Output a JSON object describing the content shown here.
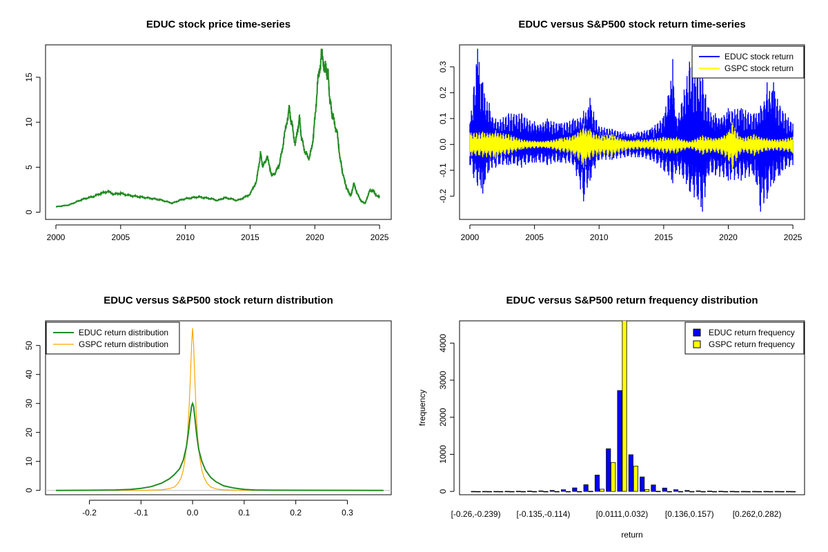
{
  "chart_data": [
    {
      "id": "price",
      "type": "line",
      "title": "EDUC stock price time-series",
      "xlabel": "",
      "ylabel": "",
      "xlim": [
        1999.2,
        2025.9
      ],
      "ylim": [
        -0.8,
        18.6
      ],
      "xticks": [
        2000,
        2005,
        2010,
        2015,
        2020,
        2025
      ],
      "xtick_labels": [
        "2000",
        "2005",
        "2010",
        "2015",
        "2020",
        "2025"
      ],
      "yticks": [
        0,
        5,
        10,
        15
      ],
      "ytick_labels": [
        "0",
        "5",
        "10",
        "15"
      ],
      "grid": false,
      "legend": null,
      "series": [
        {
          "color": "#228B22",
          "x": [
            2000.0,
            2000.5,
            2001.0,
            2001.5,
            2002.0,
            2002.5,
            2003.0,
            2003.5,
            2004.0,
            2004.5,
            2005.0,
            2005.5,
            2006.0,
            2006.5,
            2007.0,
            2007.5,
            2008.0,
            2008.5,
            2009.0,
            2009.5,
            2010.0,
            2010.5,
            2011.0,
            2011.5,
            2012.0,
            2012.5,
            2013.0,
            2013.5,
            2014.0,
            2014.5,
            2015.0,
            2015.5,
            2015.8,
            2016.0,
            2016.3,
            2016.7,
            2017.0,
            2017.3,
            2017.6,
            2018.0,
            2018.2,
            2018.5,
            2018.8,
            2019.0,
            2019.3,
            2019.6,
            2019.9,
            2020.2,
            2020.5,
            2020.8,
            2021.0,
            2021.2,
            2021.4,
            2021.7,
            2022.0,
            2022.2,
            2022.5,
            2022.8,
            2023.0,
            2023.3,
            2023.6,
            2023.9,
            2024.2,
            2024.5,
            2024.8,
            2025.0
          ],
          "y": [
            0.6,
            0.7,
            0.8,
            1.1,
            1.4,
            1.6,
            1.8,
            2.1,
            2.3,
            2.0,
            2.1,
            1.9,
            1.8,
            1.7,
            1.6,
            1.5,
            1.4,
            1.2,
            1.0,
            1.3,
            1.5,
            1.6,
            1.7,
            1.6,
            1.5,
            1.3,
            1.6,
            1.5,
            1.3,
            1.6,
            2.0,
            3.5,
            6.5,
            5.0,
            6.2,
            4.0,
            4.5,
            5.5,
            8.0,
            11.5,
            10.0,
            7.5,
            10.5,
            8.0,
            6.5,
            6.0,
            8.5,
            14.0,
            17.5,
            16.0,
            15.5,
            12.0,
            10.5,
            9.0,
            5.5,
            4.0,
            2.5,
            1.8,
            3.2,
            2.0,
            1.2,
            1.0,
            2.3,
            2.4,
            1.8,
            1.7
          ]
        }
      ]
    },
    {
      "id": "returns",
      "type": "line",
      "title": "EDUC versus S&P500 stock return time-series",
      "xlabel": "",
      "ylabel": "",
      "xlim": [
        1999.2,
        2025.9
      ],
      "ylim": [
        -0.29,
        0.385
      ],
      "xticks": [
        2000,
        2005,
        2010,
        2015,
        2020,
        2025
      ],
      "xtick_labels": [
        "2000",
        "2005",
        "2010",
        "2015",
        "2020",
        "2025"
      ],
      "yticks": [
        -0.2,
        -0.1,
        0.0,
        0.1,
        0.2,
        0.3
      ],
      "ytick_labels": [
        "-0.2",
        "-0.1",
        "0.0",
        "0.1",
        "0.2",
        "0.3"
      ],
      "grid": false,
      "legend": "top-right",
      "series": [
        {
          "name": "EDUC stock return",
          "color": "#0000FF",
          "x": [
            2000.0,
            2000.3,
            2000.6,
            2001.0,
            2001.5,
            2002.0,
            2003.0,
            2004.0,
            2005.0,
            2006.0,
            2007.0,
            2008.0,
            2008.8,
            2009.3,
            2010.0,
            2011.0,
            2012.0,
            2013.0,
            2014.0,
            2015.0,
            2015.7,
            2016.0,
            2017.0,
            2018.0,
            2018.5,
            2019.0,
            2020.0,
            2021.0,
            2022.0,
            2022.5,
            2023.0,
            2023.5,
            2024.0,
            2025.0
          ],
          "high": [
            0.08,
            0.22,
            0.37,
            0.24,
            0.16,
            0.1,
            0.12,
            0.12,
            0.09,
            0.1,
            0.08,
            0.1,
            0.13,
            0.18,
            0.07,
            0.06,
            0.05,
            0.05,
            0.06,
            0.11,
            0.33,
            0.1,
            0.32,
            0.26,
            0.14,
            0.12,
            0.14,
            0.14,
            0.12,
            0.15,
            0.24,
            0.24,
            0.15,
            0.08
          ],
          "low": [
            -0.08,
            -0.13,
            -0.16,
            -0.19,
            -0.1,
            -0.09,
            -0.08,
            -0.09,
            -0.07,
            -0.08,
            -0.07,
            -0.08,
            -0.22,
            -0.14,
            -0.06,
            -0.06,
            -0.05,
            -0.05,
            -0.06,
            -0.1,
            -0.15,
            -0.1,
            -0.18,
            -0.26,
            -0.12,
            -0.12,
            -0.14,
            -0.14,
            -0.12,
            -0.26,
            -0.21,
            -0.15,
            -0.12,
            -0.08
          ]
        },
        {
          "name": "GSPC stock return",
          "color": "#FFFF00",
          "x": [
            2000.0,
            2001.0,
            2002.0,
            2003.0,
            2004.0,
            2005.0,
            2006.0,
            2007.0,
            2008.0,
            2008.8,
            2009.3,
            2010.0,
            2011.0,
            2012.0,
            2013.0,
            2014.0,
            2015.0,
            2016.0,
            2017.0,
            2018.0,
            2019.0,
            2020.0,
            2020.3,
            2021.0,
            2022.0,
            2023.0,
            2024.0,
            2025.0
          ],
          "high": [
            0.045,
            0.05,
            0.055,
            0.04,
            0.02,
            0.015,
            0.015,
            0.025,
            0.035,
            0.08,
            0.06,
            0.035,
            0.04,
            0.02,
            0.02,
            0.02,
            0.03,
            0.03,
            0.012,
            0.035,
            0.025,
            0.05,
            0.085,
            0.025,
            0.04,
            0.025,
            0.02,
            0.03
          ],
          "low": [
            -0.045,
            -0.05,
            -0.055,
            -0.04,
            -0.02,
            -0.015,
            -0.015,
            -0.03,
            -0.04,
            -0.09,
            -0.06,
            -0.04,
            -0.05,
            -0.025,
            -0.02,
            -0.02,
            -0.035,
            -0.035,
            -0.015,
            -0.04,
            -0.03,
            -0.06,
            -0.1,
            -0.03,
            -0.045,
            -0.025,
            -0.025,
            -0.035
          ]
        }
      ]
    },
    {
      "id": "density",
      "type": "line",
      "title": "EDUC versus S&P500 stock return distribution",
      "xlabel": "",
      "ylabel": "",
      "xlim": [
        -0.285,
        0.385
      ],
      "ylim": [
        -1.5,
        58.5
      ],
      "xticks": [
        -0.2,
        -0.1,
        0.0,
        0.1,
        0.2,
        0.3
      ],
      "xtick_labels": [
        "-0.2",
        "-0.1",
        "0.0",
        "0.1",
        "0.2",
        "0.3"
      ],
      "yticks": [
        0,
        10,
        20,
        30,
        40,
        50
      ],
      "ytick_labels": [
        "0",
        "10",
        "20",
        "30",
        "40",
        "50"
      ],
      "grid": false,
      "legend": "top-left",
      "series": [
        {
          "name": "EDUC return distribution",
          "color": "#228B22",
          "x": [
            -0.265,
            -0.2,
            -0.15,
            -0.12,
            -0.1,
            -0.08,
            -0.06,
            -0.045,
            -0.035,
            -0.025,
            -0.018,
            -0.012,
            -0.008,
            -0.005,
            -0.002,
            0.0,
            0.002,
            0.005,
            0.008,
            0.012,
            0.018,
            0.025,
            0.035,
            0.045,
            0.06,
            0.08,
            0.1,
            0.12,
            0.15,
            0.2,
            0.3,
            0.37
          ],
          "y": [
            0.0,
            0.05,
            0.15,
            0.35,
            0.7,
            1.3,
            2.5,
            4.0,
            5.5,
            7.5,
            10.5,
            15.0,
            20.0,
            25.0,
            29.0,
            30.0,
            29.0,
            24.0,
            19.0,
            14.0,
            10.0,
            7.0,
            4.5,
            3.0,
            1.6,
            0.8,
            0.35,
            0.15,
            0.08,
            0.04,
            0.02,
            0.0
          ]
        },
        {
          "name": "GSPC return distribution",
          "color": "#FFA500",
          "x": [
            -0.265,
            -0.1,
            -0.06,
            -0.045,
            -0.035,
            -0.028,
            -0.022,
            -0.018,
            -0.014,
            -0.01,
            -0.007,
            -0.004,
            -0.002,
            0.0,
            0.002,
            0.004,
            0.007,
            0.01,
            0.014,
            0.018,
            0.022,
            0.028,
            0.035,
            0.045,
            0.06,
            0.1,
            0.37
          ],
          "y": [
            0.0,
            0.0,
            0.2,
            0.6,
            1.2,
            2.5,
            4.5,
            7.0,
            11.5,
            19.0,
            28.0,
            40.0,
            50.0,
            56.0,
            50.0,
            40.0,
            27.0,
            18.0,
            11.0,
            7.0,
            4.5,
            2.5,
            1.2,
            0.5,
            0.2,
            0.0,
            0.0
          ]
        }
      ]
    },
    {
      "id": "histogram",
      "type": "bar",
      "title": "EDUC versus S&P500 return frequency distribution",
      "xlabel": "return",
      "ylabel": "frequency",
      "ylim": [
        -90,
        4600
      ],
      "yticks": [
        0,
        1000,
        2000,
        3000,
        4000
      ],
      "ytick_labels": [
        "0",
        "1000",
        "2000",
        "3000",
        "4000"
      ],
      "xtick_labels": [
        {
          "bin": 0,
          "label": "[-0.26,-0.239)"
        },
        {
          "bin": 6,
          "label": "[-0.135,-0.114)"
        },
        {
          "bin": 13,
          "label": "[0.0111,0.032)"
        },
        {
          "bin": 19,
          "label": "[0.136,0.157)"
        },
        {
          "bin": 25,
          "label": "[0.262,0.282)"
        }
      ],
      "grid": false,
      "legend": "top-right",
      "series": [
        {
          "name": "EDUC return frequency",
          "color": "#0000FF",
          "values": [
            1,
            2,
            2,
            3,
            5,
            8,
            14,
            25,
            45,
            95,
            180,
            440,
            1150,
            2720,
            990,
            390,
            175,
            90,
            45,
            25,
            14,
            8,
            5,
            3,
            2,
            2,
            1,
            1,
            1
          ]
        },
        {
          "name": "GSPC return frequency",
          "color": "#FFFF00",
          "values": [
            0,
            0,
            0,
            0,
            0,
            0,
            0,
            0,
            0,
            0,
            4,
            60,
            780,
            4700,
            680,
            50,
            4,
            0,
            0,
            0,
            0,
            0,
            0,
            0,
            0,
            0,
            0,
            0,
            0
          ]
        }
      ]
    }
  ]
}
